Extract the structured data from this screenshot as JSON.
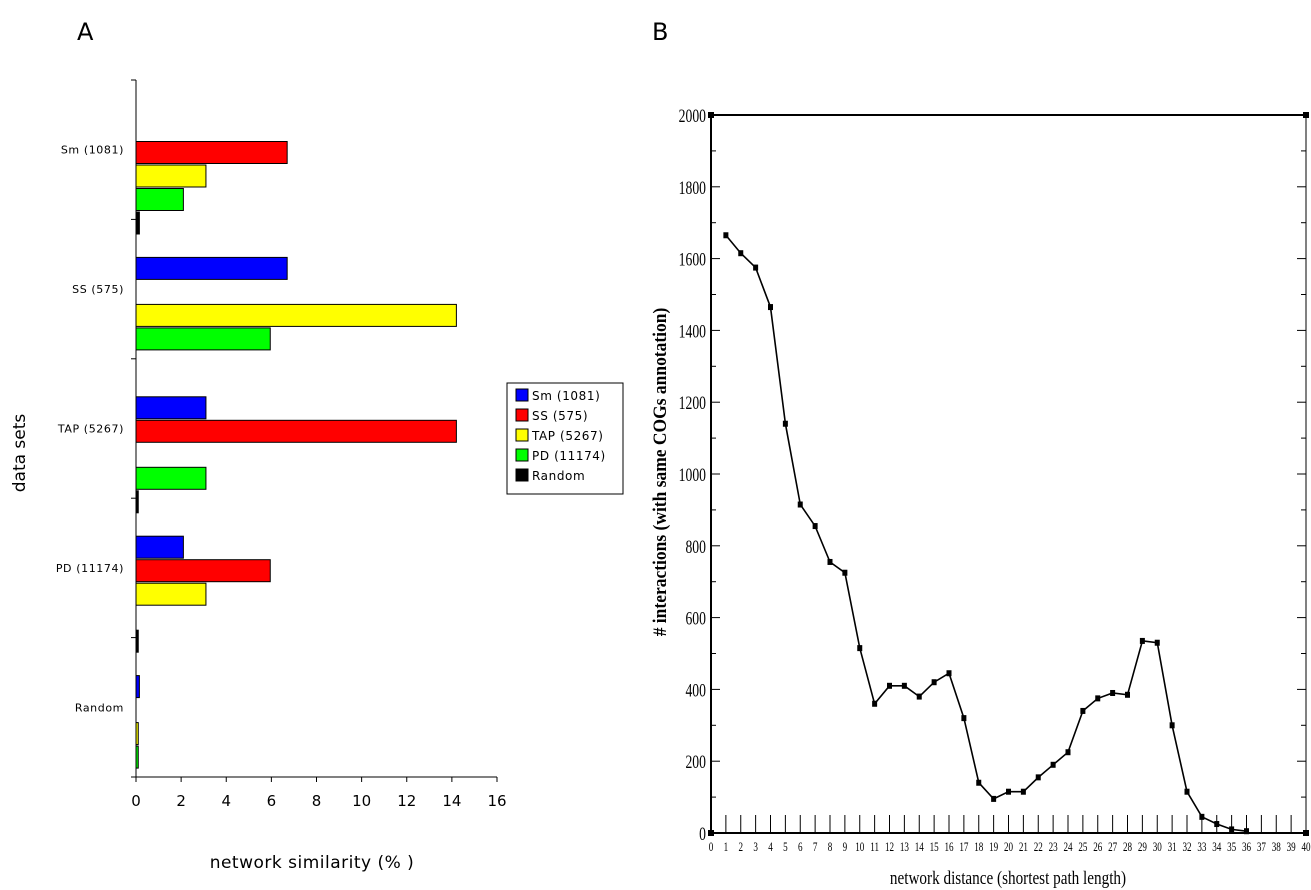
{
  "panels": {
    "a_label": "A",
    "b_label": "B"
  },
  "chart_data": [
    {
      "type": "bar",
      "orientation": "horizontal",
      "xlabel": "network similarity (% )",
      "ylabel": "data sets",
      "xlim": [
        0,
        16
      ],
      "xticks": [
        0,
        2,
        4,
        6,
        8,
        10,
        12,
        14,
        16
      ],
      "categories": [
        "Sm (1081)",
        "SS (575)",
        "TAP (5267)",
        "PD (11174)",
        "Random"
      ],
      "series": [
        {
          "name": "Sm (1081)",
          "color": "#0000ff",
          "values": [
            0,
            6.7,
            3.1,
            2.1,
            0.15
          ]
        },
        {
          "name": "SS (575)",
          "color": "#ff0000",
          "values": [
            6.7,
            0,
            14.2,
            5.95,
            0
          ]
        },
        {
          "name": "TAP (5267)",
          "color": "#ffff00",
          "values": [
            3.1,
            14.2,
            0,
            3.1,
            0.1
          ]
        },
        {
          "name": "PD (11174)",
          "color": "#00ff00",
          "values": [
            2.1,
            5.95,
            3.1,
            0,
            0.1
          ]
        },
        {
          "name": "Random",
          "color": "#000000",
          "values": [
            0.15,
            0,
            0.1,
            0.1,
            0
          ]
        }
      ],
      "legend_position": "right"
    },
    {
      "type": "line",
      "xlabel": "network distance (shortest path length)",
      "ylabel": "# interactions (with same COGs annotation)",
      "xlim": [
        0,
        40
      ],
      "ylim": [
        0,
        2000
      ],
      "xticks": [
        0,
        1,
        2,
        3,
        4,
        5,
        6,
        7,
        8,
        9,
        10,
        11,
        12,
        13,
        14,
        15,
        16,
        17,
        18,
        19,
        20,
        21,
        22,
        23,
        24,
        25,
        26,
        27,
        28,
        29,
        30,
        31,
        32,
        33,
        34,
        35,
        36,
        37,
        38,
        39,
        40
      ],
      "yticks": [
        0,
        200,
        400,
        600,
        800,
        1000,
        1200,
        1400,
        1600,
        1800,
        2000
      ],
      "x": [
        1,
        2,
        3,
        4,
        5,
        6,
        7,
        8,
        9,
        10,
        11,
        12,
        13,
        14,
        15,
        16,
        17,
        18,
        19,
        20,
        21,
        22,
        23,
        24,
        25,
        26,
        27,
        28,
        29,
        30,
        31,
        32,
        33,
        34,
        35,
        36
      ],
      "y": [
        1665,
        1615,
        1575,
        1465,
        1140,
        915,
        855,
        755,
        725,
        515,
        360,
        410,
        410,
        380,
        420,
        445,
        320,
        140,
        95,
        115,
        115,
        155,
        190,
        225,
        340,
        375,
        390,
        385,
        535,
        530,
        300,
        115,
        45,
        25,
        10,
        5
      ]
    }
  ]
}
